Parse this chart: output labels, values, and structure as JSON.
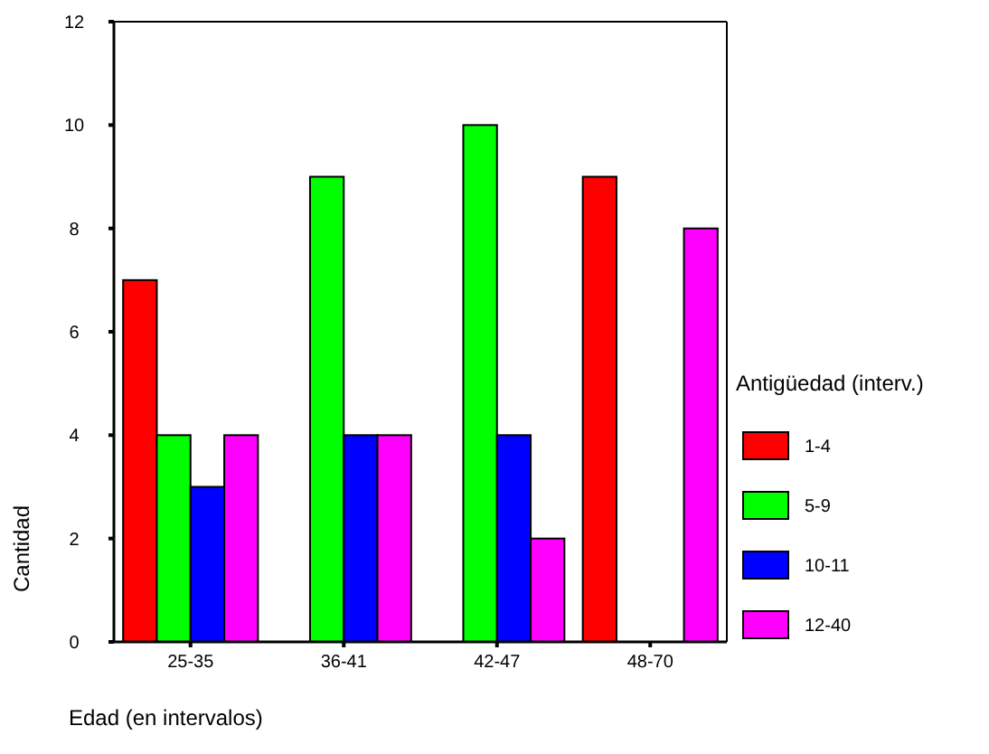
{
  "chart_data": {
    "type": "bar",
    "xlabel": "Edad (en intervalos)",
    "ylabel": "Cantidad",
    "legend_title": "Antigüedad (interv.)",
    "categories": [
      "25-35",
      "36-41",
      "42-47",
      "48-70"
    ],
    "series": [
      {
        "name": "1-4",
        "color": "#ff0000",
        "values": [
          7,
          null,
          null,
          9
        ]
      },
      {
        "name": "5-9",
        "color": "#00ff00",
        "values": [
          4,
          9,
          10,
          null
        ]
      },
      {
        "name": "10-11",
        "color": "#0000ff",
        "values": [
          3,
          4,
          4,
          null
        ]
      },
      {
        "name": "12-40",
        "color": "#ff00ff",
        "values": [
          4,
          4,
          2,
          8
        ]
      }
    ],
    "ylim": [
      0,
      12
    ],
    "yticks": [
      0,
      2,
      4,
      6,
      8,
      10,
      12
    ],
    "legend": "right",
    "grid": false
  }
}
